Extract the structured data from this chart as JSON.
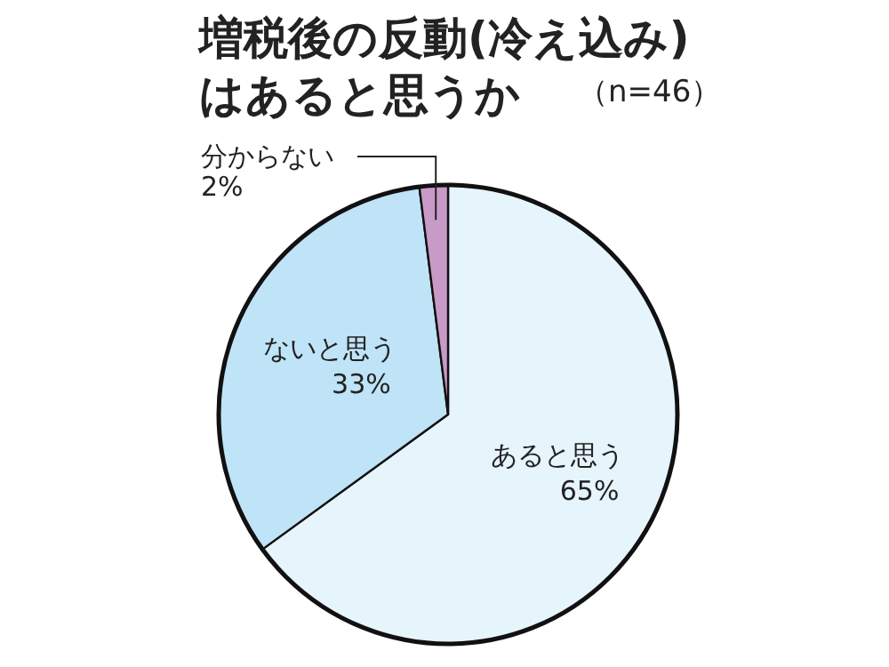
{
  "chart_data": {
    "type": "pie",
    "title": "増税後の反動(冷え込み)はあると思うか",
    "subtitle": "（n=46）",
    "categories": [
      "あると思う",
      "ないと思う",
      "分からない"
    ],
    "values": [
      65,
      33,
      2
    ],
    "value_labels": [
      "65%",
      "33%",
      "2%"
    ],
    "colors": [
      "#e6f4fc",
      "#bfe3f7",
      "#c99ac8"
    ]
  }
}
